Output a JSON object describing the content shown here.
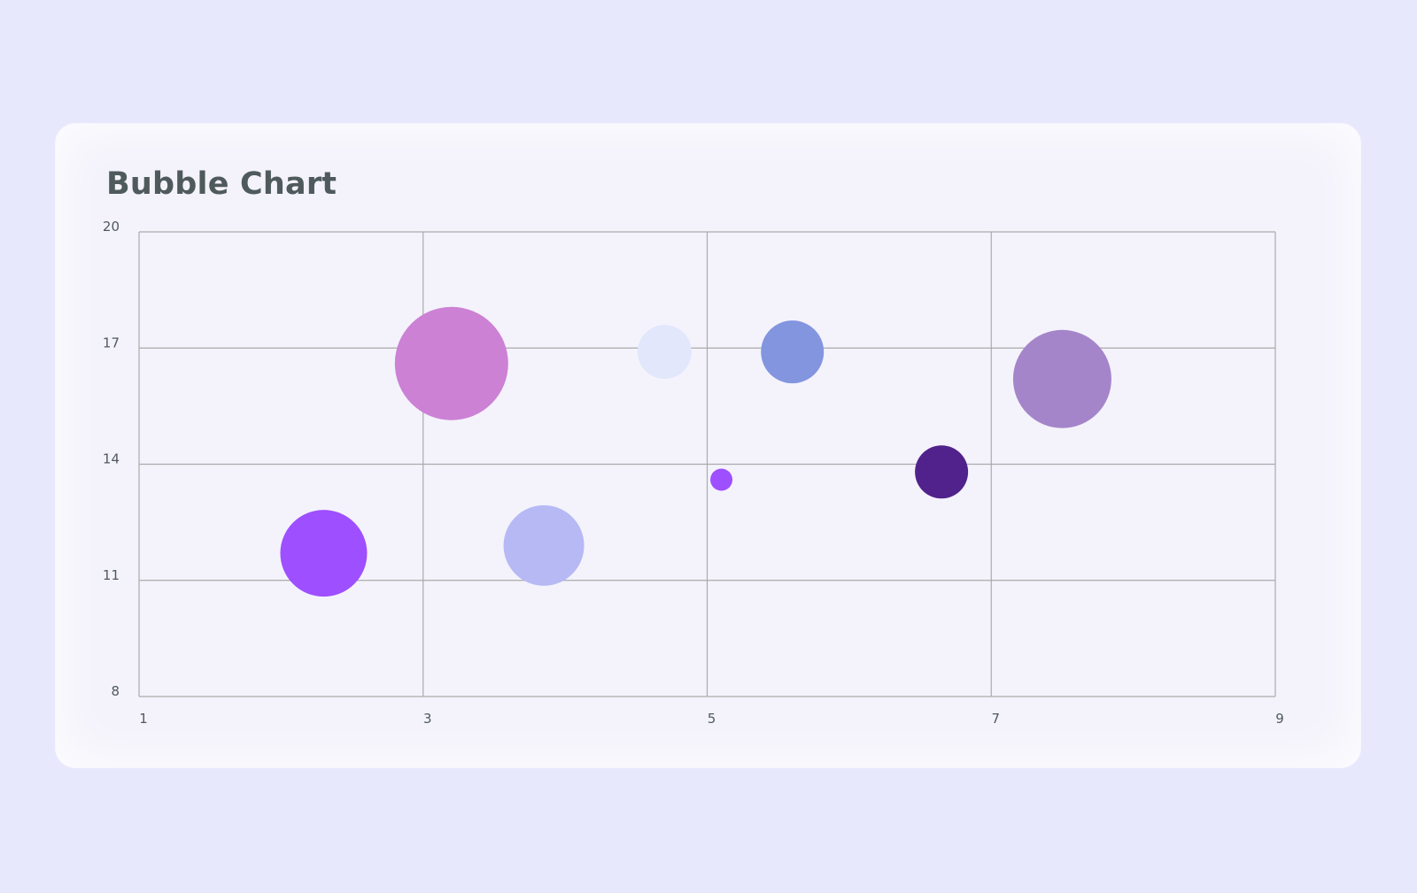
{
  "chart_data": {
    "type": "bubble",
    "title": "Bubble Chart",
    "xlabel": "",
    "ylabel": "",
    "xlim": [
      1,
      9
    ],
    "ylim": [
      8,
      20
    ],
    "x_ticks": [
      1,
      3,
      5,
      7,
      9
    ],
    "y_ticks": [
      8,
      11,
      14,
      17,
      20
    ],
    "grid": true,
    "legend": "none",
    "points": [
      {
        "x": 2.3,
        "y": 11.7,
        "r": 98,
        "color": "#9e4fff"
      },
      {
        "x": 3.2,
        "y": 16.6,
        "r": 128,
        "color": "#cc81d5"
      },
      {
        "x": 3.85,
        "y": 11.9,
        "r": 91,
        "color": "#b7b9f5"
      },
      {
        "x": 4.7,
        "y": 16.9,
        "r": 61,
        "color": "#e2e7fc"
      },
      {
        "x": 5.1,
        "y": 13.6,
        "r": 25,
        "color": "#9e4fff"
      },
      {
        "x": 5.6,
        "y": 16.9,
        "r": 71,
        "color": "#8395df"
      },
      {
        "x": 6.65,
        "y": 13.8,
        "r": 60,
        "color": "#51228b"
      },
      {
        "x": 7.5,
        "y": 16.2,
        "r": 111,
        "color": "#a585c9"
      }
    ]
  }
}
